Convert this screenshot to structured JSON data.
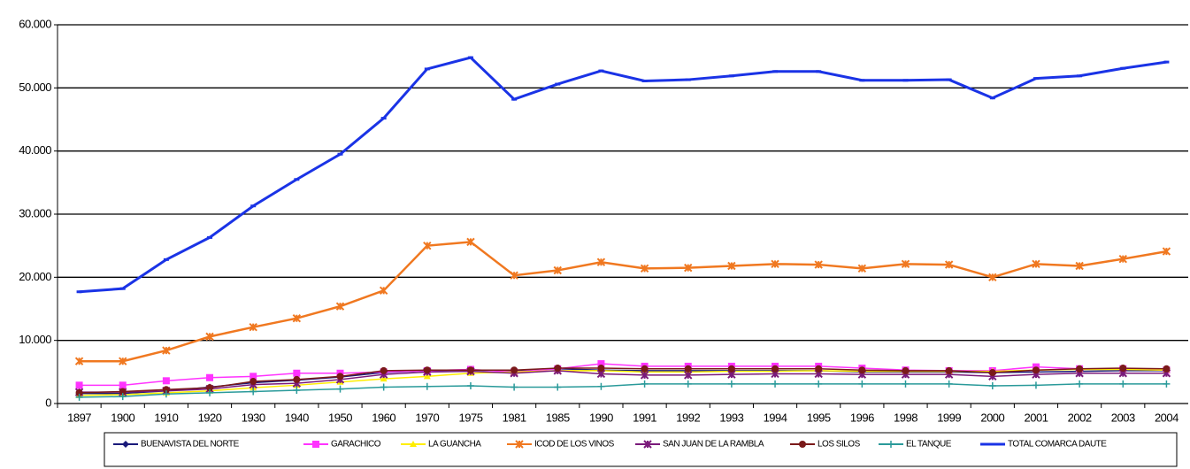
{
  "chart_data": {
    "type": "line",
    "categories": [
      "1897",
      "1900",
      "1910",
      "1920",
      "1930",
      "1940",
      "1950",
      "1960",
      "1970",
      "1975",
      "1981",
      "1985",
      "1990",
      "1991",
      "1992",
      "1993",
      "1994",
      "1995",
      "1996",
      "1998",
      "1999",
      "2000",
      "2001",
      "2002",
      "2003",
      "2004"
    ],
    "ylim": [
      0,
      60000
    ],
    "yticks": [
      0,
      {
        "value": 10000,
        "label": "10.000"
      },
      {
        "value": 20000,
        "label": "20.000"
      },
      {
        "value": 30000,
        "label": "30.000"
      },
      {
        "value": 40000,
        "label": "40.000"
      },
      {
        "value": 50000,
        "label": "50.000"
      },
      {
        "value": 60000,
        "label": "60.000"
      }
    ],
    "grid": true,
    "legend": "bottom",
    "series": [
      {
        "name": "BUENAVISTA DEL NORTE",
        "color": "#1a1a7a",
        "marker": "diamond",
        "values": [
          1600,
          1600,
          2000,
          2600,
          3300,
          3700,
          4200,
          4900,
          5200,
          5300,
          5200,
          5500,
          5300,
          5200,
          5200,
          5200,
          5200,
          5200,
          5000,
          5000,
          5000,
          4900,
          5000,
          5100,
          5200,
          5200
        ]
      },
      {
        "name": "GARACHICO",
        "color": "#ff33ff",
        "marker": "square",
        "values": [
          2900,
          2900,
          3600,
          4100,
          4300,
          4800,
          4800,
          5000,
          5200,
          5400,
          5000,
          5500,
          6300,
          5900,
          5900,
          5900,
          5900,
          5900,
          5600,
          5300,
          5200,
          5200,
          5800,
          5500,
          5500,
          5300
        ]
      },
      {
        "name": "LA GUANCHA",
        "color": "#ffee00",
        "marker": "triangle",
        "values": [
          1300,
          1400,
          1700,
          2000,
          2500,
          2900,
          3400,
          3900,
          4300,
          4800,
          5000,
          5200,
          5200,
          5000,
          5000,
          5100,
          5100,
          5200,
          5100,
          5100,
          5100,
          5100,
          5300,
          5400,
          5400,
          5300
        ]
      },
      {
        "name": "ICOD DE LOS VINOS",
        "color": "#f07820",
        "marker": "star",
        "values": [
          6700,
          6700,
          8400,
          10600,
          12100,
          13500,
          15400,
          17900,
          25000,
          25600,
          20300,
          21100,
          22400,
          21400,
          21500,
          21800,
          22100,
          22000,
          21400,
          22100,
          22000,
          20000,
          22100,
          21800,
          22900,
          24100
        ]
      },
      {
        "name": "SAN JUAN DE LA RAMBLA",
        "color": "#7a1a7a",
        "marker": "star",
        "values": [
          1800,
          1800,
          2000,
          2300,
          3000,
          3200,
          3800,
          4600,
          5000,
          5100,
          4800,
          5200,
          4700,
          4500,
          4500,
          4600,
          4700,
          4700,
          4600,
          4600,
          4600,
          4300,
          4600,
          4800,
          4800,
          4800
        ]
      },
      {
        "name": "LOS SILOS",
        "color": "#7a1a1a",
        "marker": "circle",
        "values": [
          1700,
          1900,
          2200,
          2500,
          3500,
          3800,
          4300,
          5200,
          5300,
          5300,
          5300,
          5600,
          5600,
          5500,
          5500,
          5500,
          5500,
          5500,
          5300,
          5200,
          5200,
          4900,
          5300,
          5500,
          5600,
          5500
        ]
      },
      {
        "name": "EL TANQUE",
        "color": "#2a9a9a",
        "marker": "plus",
        "values": [
          1000,
          1100,
          1500,
          1700,
          1900,
          2100,
          2300,
          2600,
          2700,
          2800,
          2600,
          2600,
          2700,
          3100,
          3100,
          3100,
          3100,
          3100,
          3100,
          3100,
          3100,
          2800,
          2900,
          3100,
          3100,
          3100
        ]
      },
      {
        "name": "TOTAL COMARCA DAUTE",
        "color": "#1a33e6",
        "marker": "dash",
        "values": [
          17700,
          18200,
          22800,
          26300,
          31300,
          35500,
          39500,
          45200,
          53000,
          54800,
          48200,
          50600,
          52700,
          51100,
          51300,
          51900,
          52600,
          52600,
          51200,
          51200,
          51300,
          48400,
          51500,
          51900,
          53100,
          54100
        ]
      }
    ]
  }
}
